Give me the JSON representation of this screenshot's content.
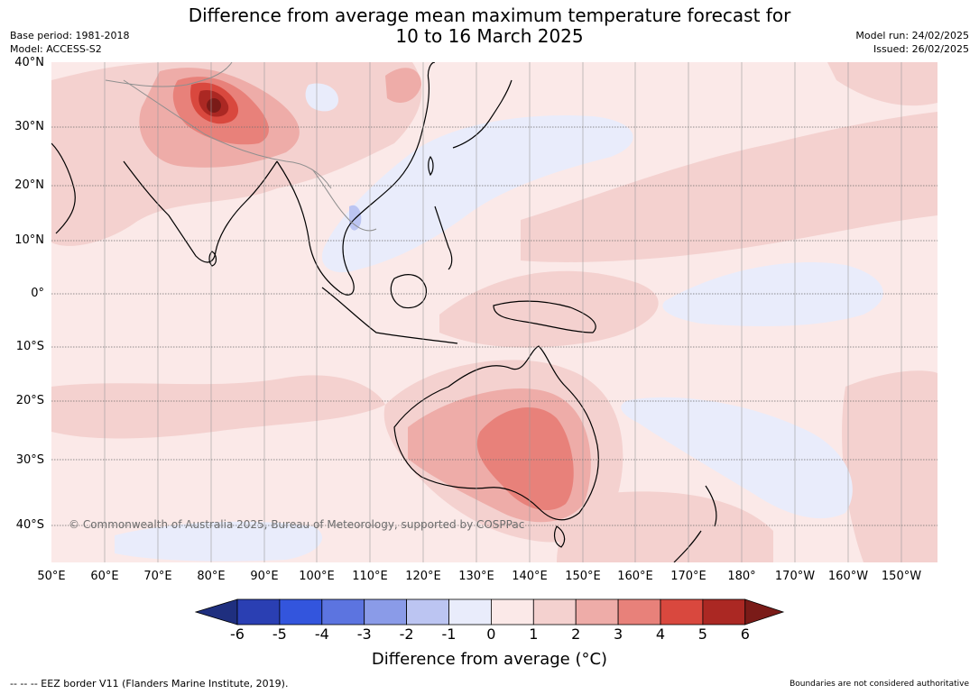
{
  "header": {
    "title_line1": "Difference from average mean maximum temperature forecast for",
    "title_line2": "10 to 16 March 2025",
    "base_period": "Base period: 1981-2018",
    "model": "Model: ACCESS-S2",
    "model_run": "Model run: 24/02/2025",
    "issued": "Issued: 26/02/2025"
  },
  "map": {
    "lat_labels": [
      "40°N",
      "30°N",
      "20°N",
      "10°N",
      "0°",
      "10°S",
      "20°S",
      "30°S",
      "40°S"
    ],
    "lon_labels": [
      "50°E",
      "60°E",
      "70°E",
      "80°E",
      "90°E",
      "100°E",
      "110°E",
      "120°E",
      "130°E",
      "140°E",
      "150°E",
      "160°E",
      "170°E",
      "180°",
      "170°W",
      "160°W",
      "150°W"
    ],
    "copyright": "© Commonwealth of Australia 2025, Bureau of Meteorology, supported by COSPPac"
  },
  "colorbar": {
    "ticks": [
      "-6",
      "-5",
      "-4",
      "-3",
      "-2",
      "-1",
      "0",
      "1",
      "2",
      "3",
      "4",
      "5",
      "6"
    ],
    "colors": [
      "#1f2f7f",
      "#2a3fb3",
      "#3355dd",
      "#5c74e0",
      "#8a9be8",
      "#bcc5f2",
      "#e9ecfb",
      "#fbe9e8",
      "#f4d1cf",
      "#eeaca8",
      "#e8817a",
      "#d9483e",
      "#ab2823",
      "#7a1b18"
    ],
    "label": "Difference from average (°C)"
  },
  "footer": {
    "eez_note": "--  --  -- EEZ border V11 (Flanders Marine Institute, 2019).",
    "boundaries_note": "Boundaries are not considered authoritative"
  }
}
